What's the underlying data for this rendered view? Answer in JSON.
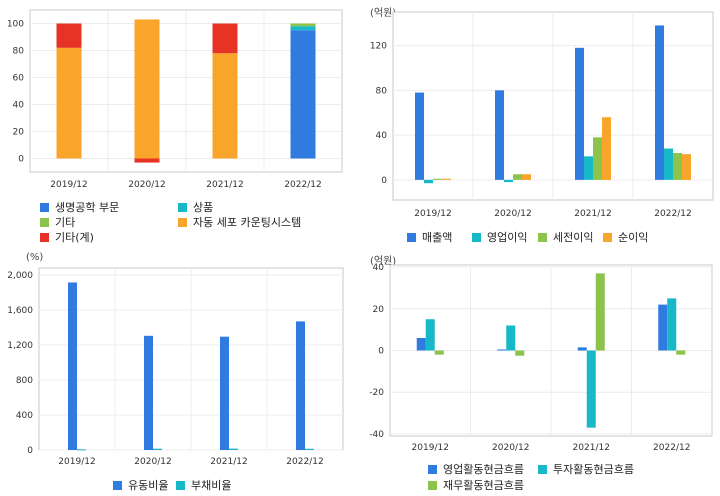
{
  "chart_data": [
    {
      "id": "revenue-composition",
      "type": "bar",
      "stacked": true,
      "categories": [
        "2019/12",
        "2020/12",
        "2021/12",
        "2022/12"
      ],
      "series": [
        {
          "name": "생명공학 부문",
          "color": "#2f7be0",
          "values": [
            0,
            0,
            0,
            95
          ]
        },
        {
          "name": "상품",
          "color": "#17b8c8",
          "values": [
            0,
            0,
            0,
            3
          ]
        },
        {
          "name": "기타",
          "color": "#8cc34a",
          "values": [
            0,
            0,
            0,
            2
          ]
        },
        {
          "name": "자동 세포 카운팅시스템",
          "color": "#f9a52b",
          "values": [
            82,
            103,
            78,
            0
          ]
        },
        {
          "name": "기타(계)",
          "color": "#e63325",
          "values": [
            18,
            -3,
            22,
            0
          ]
        }
      ],
      "yticks": [
        0,
        20,
        40,
        60,
        80,
        100
      ],
      "ylim": [
        -10,
        110
      ],
      "grid": true
    },
    {
      "id": "income",
      "type": "bar",
      "unit": "(억원)",
      "categories": [
        "2019/12",
        "2020/12",
        "2021/12",
        "2022/12"
      ],
      "series": [
        {
          "name": "매출액",
          "color": "#2f7be0",
          "values": [
            78,
            80,
            118,
            138
          ]
        },
        {
          "name": "영업이익",
          "color": "#17b8c8",
          "values": [
            -3,
            -2,
            21,
            28
          ]
        },
        {
          "name": "세전이익",
          "color": "#8cc34a",
          "values": [
            1,
            5,
            38,
            24
          ]
        },
        {
          "name": "순이익",
          "color": "#f9a52b",
          "values": [
            1,
            5,
            56,
            23
          ]
        }
      ],
      "yticks": [
        0,
        40,
        80,
        120
      ],
      "ylim": [
        -18,
        150
      ],
      "grid": true
    },
    {
      "id": "ratios",
      "type": "bar",
      "unit": "(%)",
      "categories": [
        "2019/12",
        "2020/12",
        "2021/12",
        "2022/12"
      ],
      "series": [
        {
          "name": "유동비율",
          "color": "#2f7be0",
          "values": [
            1915,
            1305,
            1295,
            1470
          ]
        },
        {
          "name": "부채비율",
          "color": "#17b8c8",
          "values": [
            8,
            15,
            16,
            14
          ]
        }
      ],
      "yticks": [
        0,
        400,
        800,
        1200,
        1600,
        2000
      ],
      "ytick_labels": [
        "0",
        "400",
        "800",
        "1,200",
        "1,600",
        "2,000"
      ],
      "ylim": [
        0,
        2080
      ],
      "grid": true
    },
    {
      "id": "cashflow",
      "type": "bar",
      "unit": "(억원)",
      "categories": [
        "2019/12",
        "2020/12",
        "2021/12",
        "2022/12"
      ],
      "series": [
        {
          "name": "영업활동현금흐름",
          "color": "#2f7be0",
          "values": [
            6,
            0.5,
            1.5,
            22
          ]
        },
        {
          "name": "투자활동현금흐름",
          "color": "#17b8c8",
          "values": [
            15,
            12,
            -37,
            25
          ]
        },
        {
          "name": "재무활동현금흐름",
          "color": "#8cc34a",
          "values": [
            -2,
            -2.5,
            37,
            -2
          ]
        }
      ],
      "yticks": [
        -40,
        -20,
        0,
        20,
        40
      ],
      "ylim": [
        -41,
        41
      ],
      "grid": true
    }
  ]
}
